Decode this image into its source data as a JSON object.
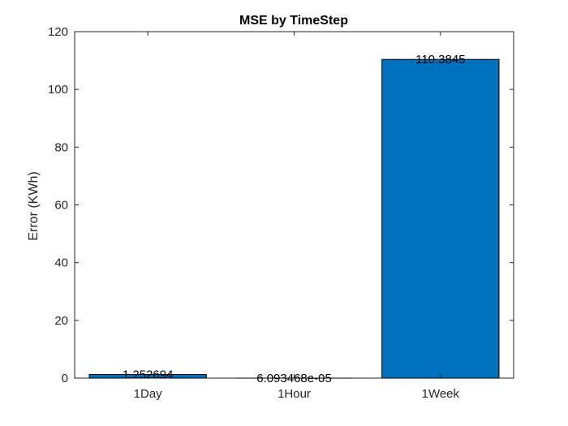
{
  "chart_data": {
    "type": "bar",
    "title": "MSE by TimeStep",
    "xlabel": "",
    "ylabel": "Error (KWh)",
    "categories": [
      "1Day",
      "1Hour",
      "1Week"
    ],
    "values": [
      1.252694,
      6.093468e-05,
      110.3845
    ],
    "value_labels": [
      "1.252694",
      "6.093468e-05",
      "110.3845"
    ],
    "ylim": [
      0,
      120
    ],
    "yticks": [
      0,
      20,
      40,
      60,
      80,
      100,
      120
    ],
    "grid": false,
    "legend": "none",
    "colors": {
      "bar": "#0072BD",
      "bar_edge": "#000000",
      "axis": "#262626"
    }
  }
}
